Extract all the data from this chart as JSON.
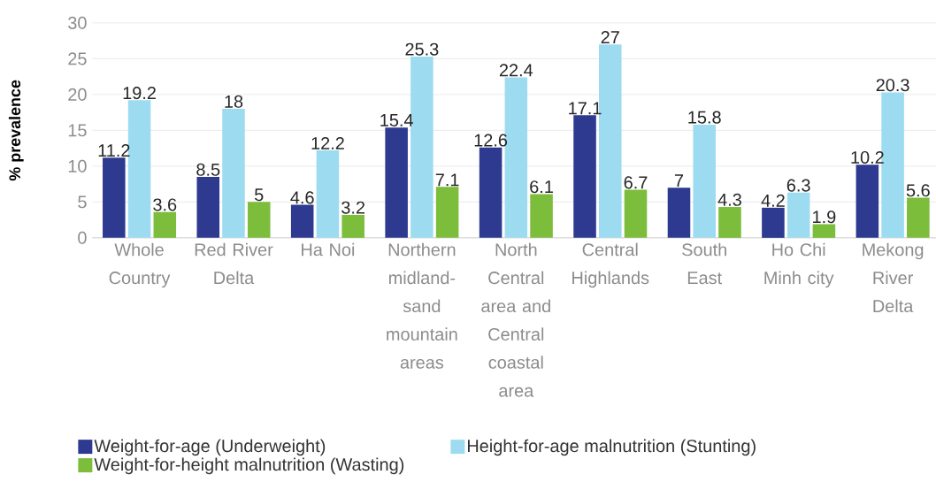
{
  "chart_data": {
    "type": "bar",
    "ylabel": "% prevalence",
    "categories": [
      "Whole Country",
      "Red River Delta",
      "Ha Noi",
      "Northern midland-sand mountain areas",
      "North Central area and Central coastal area",
      "Central Highlands",
      "South East",
      "Ho Chi Minh city",
      "Mekong River Delta"
    ],
    "series": [
      {
        "name": "Weight-for-age (Underweight)",
        "color": "#2e3a8f",
        "values": [
          11.2,
          8.5,
          4.6,
          15.4,
          12.6,
          17.1,
          7,
          4.2,
          10.2
        ]
      },
      {
        "name": "Height-for-age malnutrition (Stunting)",
        "color": "#9ddcf0",
        "values": [
          19.2,
          18,
          12.2,
          25.3,
          22.4,
          27,
          15.8,
          6.3,
          20.3
        ]
      },
      {
        "name": "Weight-for-height malnutrition (Wasting)",
        "color": "#7cbd3c",
        "values": [
          3.6,
          5,
          3.2,
          7.1,
          6.1,
          6.7,
          4.3,
          1.9,
          5.6
        ]
      }
    ],
    "ylim": [
      0,
      30
    ],
    "yticks": [
      0,
      5,
      10,
      15,
      20,
      25,
      30
    ],
    "grid": "y",
    "legend": "bottom",
    "data_labels": true
  }
}
